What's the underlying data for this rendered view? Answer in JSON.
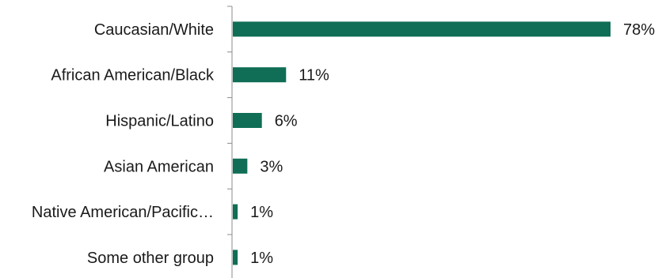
{
  "chart_data": {
    "type": "bar",
    "orientation": "horizontal",
    "categories": [
      "Caucasian/White",
      "African American/Black",
      "Hispanic/Latino",
      "Asian American",
      "Native American/Pacific…",
      "Some other group"
    ],
    "values": [
      78,
      11,
      6,
      3,
      1,
      1
    ],
    "value_labels": [
      "78%",
      "11%",
      "6%",
      "3%",
      "1%",
      "1%"
    ],
    "unit": "%",
    "xlim": [
      0,
      78
    ],
    "grid": false,
    "legend": "none",
    "bar_color": "#0f6e55"
  }
}
